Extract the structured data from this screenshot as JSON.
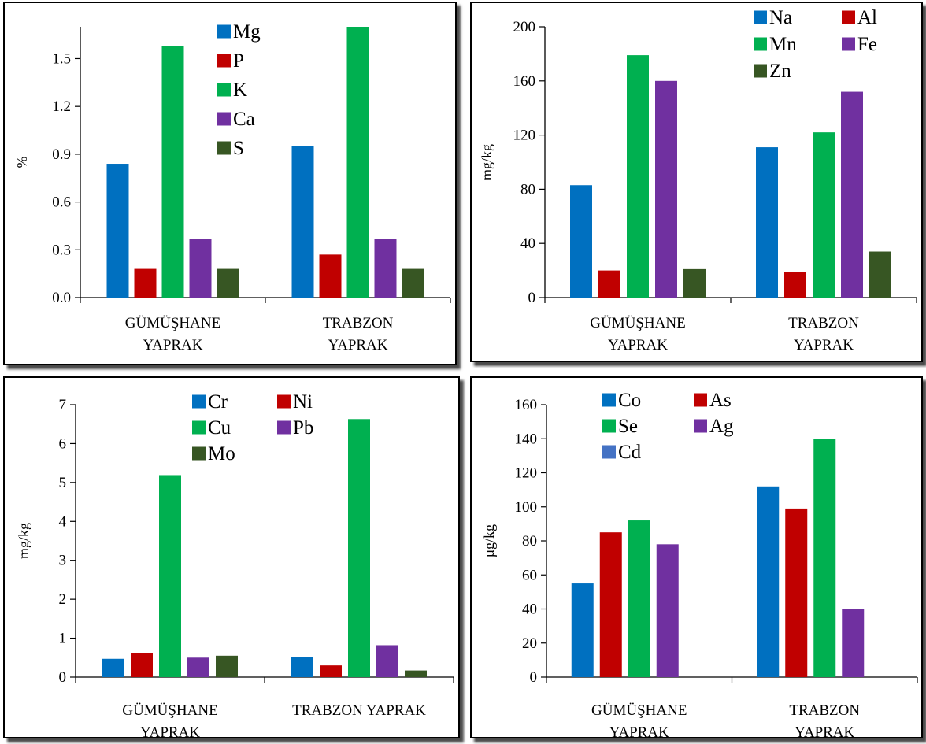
{
  "colors": {
    "blue": "#0070C0",
    "red": "#C00000",
    "green": "#00B050",
    "purple": "#7030A0",
    "darkgreen": "#375623",
    "lightblue": "#4472C4"
  },
  "chart_data": [
    {
      "type": "bar",
      "title": "",
      "ylabel": "%",
      "xlabel": "",
      "ylim": [
        0,
        1.7
      ],
      "yticks": [
        "0.0",
        "0.3",
        "0.6",
        "0.9",
        "1.2",
        "1.5"
      ],
      "categories": [
        [
          "GÜMÜŞHANE",
          "YAPRAK"
        ],
        [
          "TRABZON",
          "YAPRAK"
        ]
      ],
      "legend_position": "top-center",
      "legend_columns": 1,
      "series": [
        {
          "name": "Mg",
          "color": "blue",
          "values": [
            0.84,
            0.95
          ]
        },
        {
          "name": "P",
          "color": "red",
          "values": [
            0.18,
            0.27
          ]
        },
        {
          "name": "K",
          "color": "green",
          "values": [
            1.58,
            1.7
          ]
        },
        {
          "name": "Ca",
          "color": "purple",
          "values": [
            0.37,
            0.37
          ]
        },
        {
          "name": "S",
          "color": "darkgreen",
          "values": [
            0.18,
            0.18
          ]
        }
      ]
    },
    {
      "type": "bar",
      "title": "",
      "ylabel": "mg/kg",
      "xlabel": "",
      "ylim": [
        0,
        200
      ],
      "yticks": [
        "0",
        "40",
        "80",
        "120",
        "160",
        "200"
      ],
      "categories": [
        [
          "GÜMÜŞHANE",
          "YAPRAK"
        ],
        [
          "TRABZON",
          "YAPRAK"
        ]
      ],
      "legend_position": "top-right",
      "legend_columns": 2,
      "series": [
        {
          "name": "Na",
          "color": "blue",
          "values": [
            83,
            111
          ]
        },
        {
          "name": "Al",
          "color": "red",
          "values": [
            20,
            19
          ]
        },
        {
          "name": "Mn",
          "color": "green",
          "values": [
            179,
            122
          ]
        },
        {
          "name": "Fe",
          "color": "purple",
          "values": [
            160,
            152
          ]
        },
        {
          "name": "Zn",
          "color": "darkgreen",
          "values": [
            21,
            34
          ]
        }
      ]
    },
    {
      "type": "bar",
      "title": "",
      "ylabel": "mg/kg",
      "xlabel": "",
      "ylim": [
        0,
        7
      ],
      "yticks": [
        "0",
        "1",
        "2",
        "3",
        "4",
        "5",
        "6",
        "7"
      ],
      "categories": [
        [
          "GÜMÜŞHANE",
          "YAPRAK"
        ],
        [
          "TRABZON YAPRAK"
        ]
      ],
      "legend_position": "top-center",
      "legend_columns": 2,
      "series": [
        {
          "name": "Cr",
          "color": "blue",
          "values": [
            0.47,
            0.52
          ]
        },
        {
          "name": "Ni",
          "color": "red",
          "values": [
            0.61,
            0.3
          ]
        },
        {
          "name": "Cu",
          "color": "green",
          "values": [
            5.19,
            6.63
          ]
        },
        {
          "name": "Pb",
          "color": "purple",
          "values": [
            0.5,
            0.82
          ]
        },
        {
          "name": "Mo",
          "color": "darkgreen",
          "values": [
            0.55,
            0.17
          ]
        }
      ]
    },
    {
      "type": "bar",
      "title": "",
      "ylabel": "µg/kg",
      "xlabel": "",
      "ylim": [
        0,
        160
      ],
      "yticks": [
        "0",
        "20",
        "40",
        "60",
        "80",
        "100",
        "120",
        "140",
        "160"
      ],
      "categories": [
        [
          "GÜMÜŞHANE",
          "YAPRAK"
        ],
        [
          "TRABZON",
          "YAPRAK"
        ]
      ],
      "legend_position": "top-center",
      "legend_columns": 2,
      "series": [
        {
          "name": "Co",
          "color": "blue",
          "values": [
            55,
            112
          ]
        },
        {
          "name": "As",
          "color": "red",
          "values": [
            85,
            99
          ]
        },
        {
          "name": "Se",
          "color": "green",
          "values": [
            92,
            140
          ]
        },
        {
          "name": "Ag",
          "color": "purple",
          "values": [
            78,
            40
          ]
        },
        {
          "name": "Cd",
          "color": "lightblue",
          "values": [
            0,
            0
          ]
        }
      ]
    }
  ]
}
